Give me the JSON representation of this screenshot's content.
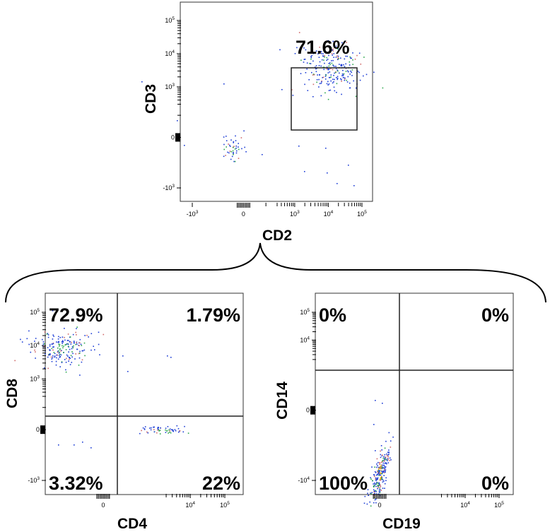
{
  "colors": {
    "dot_low": "#1f3fd6",
    "dot_mid": "#2fa84f",
    "dot_high": "#e0b000",
    "dot_rare": "#d06a6a"
  },
  "chart_data": [
    {
      "type": "scatter",
      "subtype": "flow-cytometry-density",
      "xlabel": "CD2",
      "ylabel": "CD3",
      "x_scale": "biexponential",
      "y_scale": "biexponential",
      "xticks": [
        {
          "value": -1000,
          "base": "-10",
          "exp": "3"
        },
        {
          "value": 0,
          "base": "0",
          "exp": ""
        },
        {
          "value": 1000,
          "base": "10",
          "exp": "3"
        },
        {
          "value": 10000,
          "base": "10",
          "exp": "4"
        },
        {
          "value": 100000,
          "base": "10",
          "exp": "5"
        }
      ],
      "yticks": [
        {
          "value": -1000,
          "base": "-10",
          "exp": "3"
        },
        {
          "value": 0,
          "base": "0",
          "exp": ""
        },
        {
          "value": 1000,
          "base": "10",
          "exp": "3"
        },
        {
          "value": 10000,
          "base": "10",
          "exp": "4"
        },
        {
          "value": 100000,
          "base": "10",
          "exp": "5"
        }
      ],
      "gates": [
        {
          "label": "71.6%",
          "x_range": [
            4000,
            80000
          ],
          "y_range": [
            700,
            10000
          ]
        }
      ],
      "populations": [
        {
          "center": [
            13000,
            3500
          ],
          "n": 230
        },
        {
          "center": [
            -100,
            -100
          ],
          "n": 45
        }
      ]
    },
    {
      "type": "scatter",
      "subtype": "flow-cytometry-quadrant",
      "xlabel": "CD4",
      "ylabel": "CD8",
      "x_scale": "biexponential",
      "y_scale": "biexponential",
      "xticks": [
        {
          "value": 0,
          "base": "0",
          "exp": ""
        },
        {
          "value": 10000,
          "base": "10",
          "exp": "4"
        },
        {
          "value": 100000,
          "base": "10",
          "exp": "5"
        }
      ],
      "yticks": [
        {
          "value": -1000,
          "base": "-10",
          "exp": "3"
        },
        {
          "value": 0,
          "base": "0",
          "exp": ""
        },
        {
          "value": 1000,
          "base": "10",
          "exp": "3"
        },
        {
          "value": 10000,
          "base": "10",
          "exp": "4"
        },
        {
          "value": 100000,
          "base": "10",
          "exp": "5"
        }
      ],
      "quadrant_split": {
        "x": 300,
        "y": 1000
      },
      "quadrants": {
        "upper_left": "72.9%",
        "upper_right": "1.79%",
        "lower_left": "3.32%",
        "lower_right": "22%"
      },
      "populations": [
        {
          "center": [
            -500,
            9000
          ],
          "n": 200
        },
        {
          "center": [
            1500,
            0
          ],
          "n": 55
        }
      ]
    },
    {
      "type": "scatter",
      "subtype": "flow-cytometry-quadrant",
      "xlabel": "CD19",
      "ylabel": "CD14",
      "x_scale": "biexponential",
      "y_scale": "biexponential",
      "xticks": [
        {
          "value": 0,
          "base": "0",
          "exp": ""
        },
        {
          "value": 10000,
          "base": "10",
          "exp": "4"
        },
        {
          "value": 100000,
          "base": "10",
          "exp": "5"
        }
      ],
      "yticks": [
        {
          "value": -10000,
          "base": "-10",
          "exp": "4"
        },
        {
          "value": 0,
          "base": "0",
          "exp": ""
        },
        {
          "value": 10000,
          "base": "10",
          "exp": "4"
        },
        {
          "value": 100000,
          "base": "10",
          "exp": "5"
        }
      ],
      "quadrant_split": {
        "x": 600,
        "y": 10000
      },
      "quadrants": {
        "upper_left": "0%",
        "upper_right": "0%",
        "lower_left": "100%",
        "lower_right": "0%"
      },
      "populations": [
        {
          "center": [
            0,
            -5000
          ],
          "n": 230
        }
      ]
    }
  ]
}
